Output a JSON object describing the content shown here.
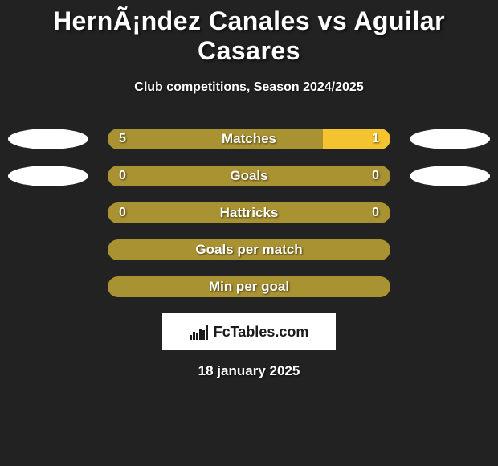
{
  "title": "HernÃ¡ndez Canales vs Aguilar Casares",
  "subtitle": "Club competitions, Season 2024/2025",
  "date": "18 january 2025",
  "logo_text": "FcTables.com",
  "colors": {
    "background": "#222222",
    "bar_primary": "#a99232",
    "bar_secondary": "#f4c430",
    "text": "#ffffff",
    "logo_bg": "#ffffff",
    "logo_fg": "#1a1a1a",
    "oval": "#ffffff"
  },
  "stats": [
    {
      "label": "Matches",
      "left_value": "5",
      "right_value": "1",
      "left_pct": 76,
      "right_pct": 24,
      "left_color": "#a99232",
      "right_color": "#f4c430",
      "show_ovals": true
    },
    {
      "label": "Goals",
      "left_value": "0",
      "right_value": "0",
      "left_pct": 50,
      "right_pct": 50,
      "left_color": "#a99232",
      "right_color": "#a99232",
      "show_ovals": true
    },
    {
      "label": "Hattricks",
      "left_value": "0",
      "right_value": "0",
      "left_pct": 50,
      "right_pct": 50,
      "left_color": "#a99232",
      "right_color": "#a99232",
      "show_ovals": false
    }
  ],
  "single_stats": [
    {
      "label": "Goals per match",
      "color": "#a99232"
    },
    {
      "label": "Min per goal",
      "color": "#a99232"
    }
  ],
  "typography": {
    "title_fontsize": 32,
    "subtitle_fontsize": 16,
    "label_fontsize": 17,
    "value_fontsize": 16,
    "date_fontsize": 17
  }
}
